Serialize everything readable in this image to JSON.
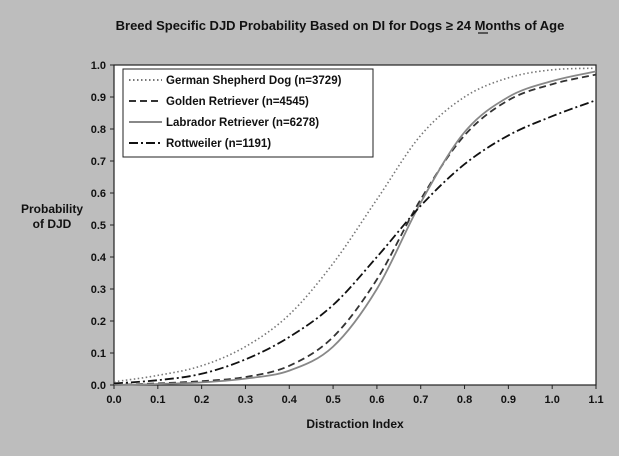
{
  "chart_data": {
    "type": "line",
    "title": "Breed Specific DJD Probability Based on DI for Dogs ≥ 24 Months of Age",
    "xlabel": "Distraction Index",
    "ylabel": [
      "Probability",
      "of DJD"
    ],
    "xlim": [
      0.0,
      1.1
    ],
    "ylim": [
      0.0,
      1.0
    ],
    "xticks": [
      0.0,
      0.1,
      0.2,
      0.3,
      0.4,
      0.5,
      0.6,
      0.7,
      0.8,
      0.9,
      1.0,
      1.1
    ],
    "xtick_labels": [
      "0.0",
      "0.1",
      "0.2",
      "0.3",
      "0.4",
      "0.5",
      "0.6",
      "0.7",
      "0.8",
      "0.9",
      "1.0",
      "1.1"
    ],
    "yticks": [
      0.0,
      0.1,
      0.2,
      0.3,
      0.4,
      0.5,
      0.6,
      0.7,
      0.8,
      0.9,
      1.0
    ],
    "ytick_labels": [
      "0.0",
      "0.1",
      "0.2",
      "0.3",
      "0.4",
      "0.5",
      "0.6",
      "0.7",
      "0.8",
      "0.9",
      "1.0"
    ],
    "grid": false,
    "legend_position": "top-left",
    "x": [
      0.0,
      0.1,
      0.2,
      0.3,
      0.4,
      0.5,
      0.6,
      0.7,
      0.8,
      0.9,
      1.0,
      1.1
    ],
    "series": [
      {
        "name": "German Shepherd Dog (n=3729)",
        "style": "dotted",
        "color": "#777777",
        "values": [
          0.01,
          0.03,
          0.06,
          0.12,
          0.22,
          0.38,
          0.58,
          0.78,
          0.9,
          0.96,
          0.985,
          0.99
        ]
      },
      {
        "name": "Golden Retriever (n=4545)",
        "style": "dashed",
        "color": "#333333",
        "values": [
          0.0,
          0.005,
          0.012,
          0.025,
          0.06,
          0.15,
          0.33,
          0.58,
          0.78,
          0.89,
          0.94,
          0.97
        ]
      },
      {
        "name": "Labrador Retriever (n=6278)",
        "style": "solid",
        "color": "#888888",
        "values": [
          0.0,
          0.003,
          0.008,
          0.02,
          0.045,
          0.12,
          0.3,
          0.57,
          0.79,
          0.9,
          0.95,
          0.98
        ]
      },
      {
        "name": "Rottweiler (n=1191)",
        "style": "dashdot",
        "color": "#111111",
        "values": [
          0.005,
          0.015,
          0.035,
          0.08,
          0.15,
          0.25,
          0.4,
          0.56,
          0.69,
          0.78,
          0.84,
          0.89
        ]
      }
    ]
  }
}
